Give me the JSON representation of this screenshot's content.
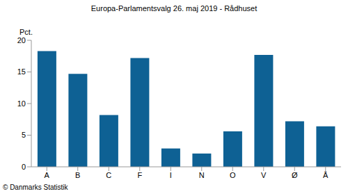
{
  "chart_data": {
    "type": "bar",
    "title": "Europa-Parlamentsvalg 26. maj 2019 - Rådhuset",
    "y_label": "Pct.",
    "annotation": "© Danmarks Statistik",
    "categories": [
      "A",
      "B",
      "C",
      "F",
      "I",
      "N",
      "O",
      "V",
      "Ø",
      "Å"
    ],
    "values": [
      18.3,
      14.7,
      8.2,
      17.2,
      2.9,
      2.1,
      5.6,
      17.7,
      7.2,
      6.4
    ],
    "color": "#0e6194",
    "ylim": [
      0,
      20
    ],
    "yticks": [
      0,
      5,
      10,
      15,
      20
    ],
    "grid": false
  }
}
